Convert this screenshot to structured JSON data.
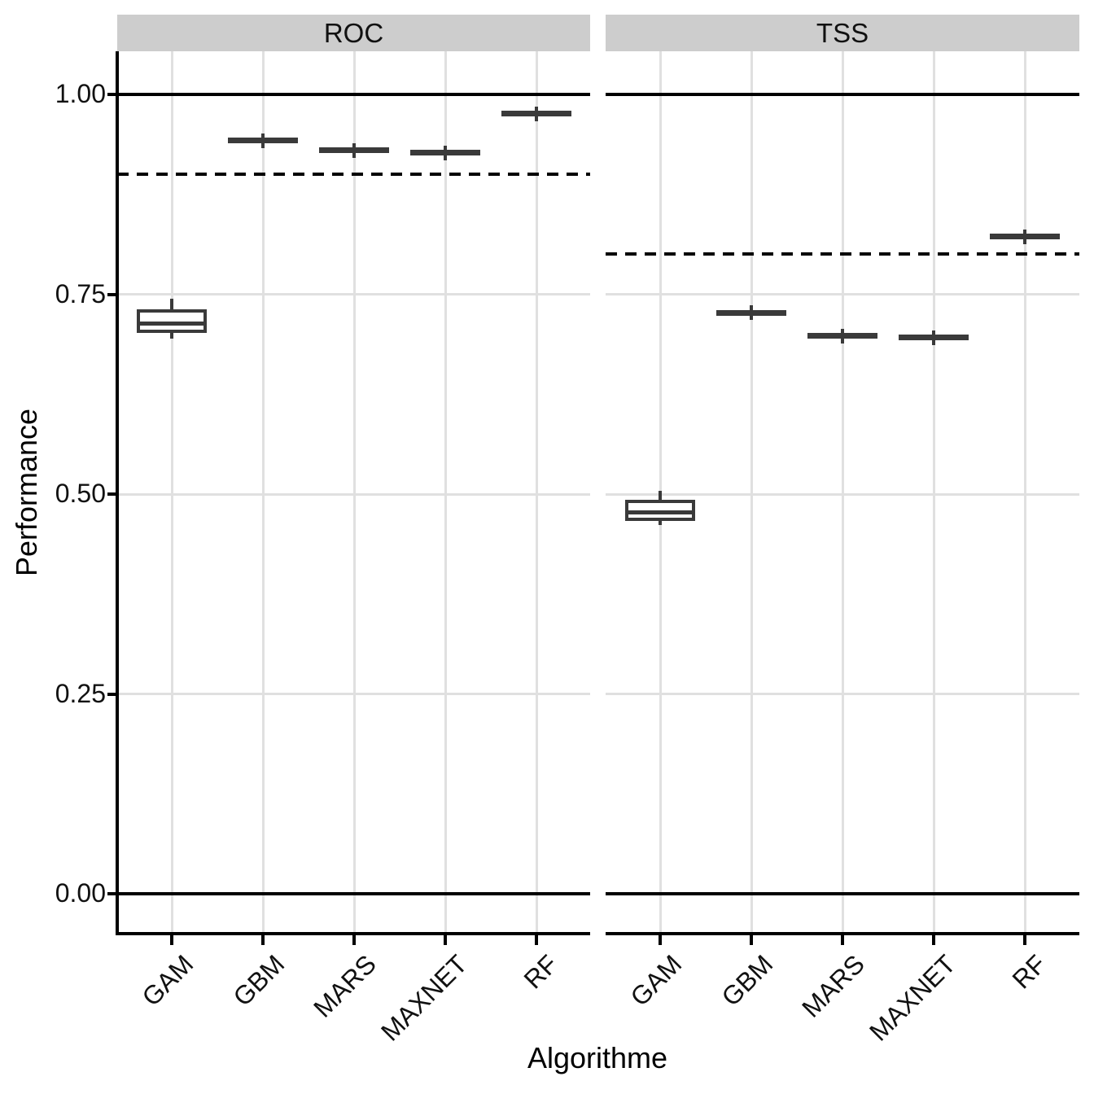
{
  "chart_data": {
    "type": "boxplot",
    "title": "",
    "xlabel": "Algorithme",
    "ylabel": "Performance",
    "ylim": [
      -0.05,
      1.05
    ],
    "ytick_labels": [
      "0.00",
      "0.25",
      "0.50",
      "0.75",
      "1.00"
    ],
    "ytick_values": [
      0,
      0.25,
      0.5,
      0.75,
      1
    ],
    "categories": [
      "GAM",
      "GBM",
      "MARS",
      "MAXNET",
      "RF"
    ],
    "grid": "major vertical per category, major horizontal per 0.25",
    "legend": "none",
    "reference_lines_solid": [
      0,
      1
    ],
    "facets": [
      {
        "label": "ROC",
        "dashed_threshold": 0.9,
        "boxes": [
          {
            "category": "GAM",
            "whisker_low": 0.694,
            "q1": 0.704,
            "median": 0.713,
            "q3": 0.729,
            "whisker_high": 0.744,
            "flat": false
          },
          {
            "category": "GBM",
            "median": 0.942,
            "flat": true
          },
          {
            "category": "MARS",
            "median": 0.93,
            "flat": true
          },
          {
            "category": "MAXNET",
            "median": 0.927,
            "flat": true
          },
          {
            "category": "RF",
            "median": 0.976,
            "flat": true
          }
        ]
      },
      {
        "label": "TSS",
        "dashed_threshold": 0.8,
        "boxes": [
          {
            "category": "GAM",
            "whisker_low": 0.461,
            "q1": 0.468,
            "median": 0.477,
            "q3": 0.491,
            "whisker_high": 0.504,
            "flat": false
          },
          {
            "category": "GBM",
            "median": 0.727,
            "flat": true
          },
          {
            "category": "MARS",
            "median": 0.698,
            "flat": true
          },
          {
            "category": "MAXNET",
            "median": 0.696,
            "flat": true
          },
          {
            "category": "RF",
            "median": 0.822,
            "flat": true
          }
        ]
      }
    ],
    "colors": {
      "box_stroke": "#3a3a3a",
      "box_fill": "#ffffff",
      "strip_bg": "#cdcdcd",
      "grid": "#e0e0e0",
      "axis": "#000000",
      "reference_line": "#000000",
      "text": "#111111",
      "panel_bg": "#ffffff"
    }
  }
}
